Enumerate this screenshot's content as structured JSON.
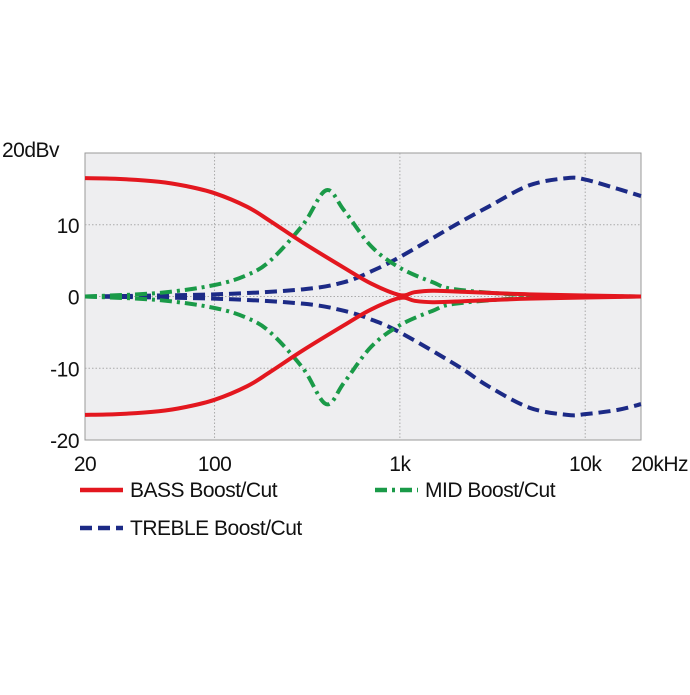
{
  "chart_data": {
    "type": "line",
    "title": "",
    "xlabel": "",
    "ylabel": "",
    "x_scale": "log",
    "xlim": [
      20,
      20000
    ],
    "ylim": [
      -20,
      20
    ],
    "grid": true,
    "x_ticks": [
      {
        "value": 20,
        "label": "20"
      },
      {
        "value": 100,
        "label": "100"
      },
      {
        "value": 1000,
        "label": "1k"
      },
      {
        "value": 10000,
        "label": "10k"
      },
      {
        "value": 20000,
        "label": "20kHz"
      }
    ],
    "y_ticks": [
      {
        "value": 20,
        "label": "20dBv"
      },
      {
        "value": 10,
        "label": "10"
      },
      {
        "value": 0,
        "label": "0"
      },
      {
        "value": -10,
        "label": "-10"
      },
      {
        "value": -20,
        "label": "-20"
      }
    ],
    "legend_placement": "bottom",
    "series": [
      {
        "name": "BASS Boost/Cut",
        "color": "#e3171f",
        "style": "solid",
        "curves": [
          [
            [
              20,
              16.5
            ],
            [
              30,
              16.4
            ],
            [
              50,
              16
            ],
            [
              70,
              15.4
            ],
            [
              100,
              14.4
            ],
            [
              150,
              12.5
            ],
            [
              200,
              10.5
            ],
            [
              300,
              7.5
            ],
            [
              500,
              4
            ],
            [
              700,
              1.8
            ],
            [
              1000,
              0.2
            ],
            [
              1200,
              0.6
            ],
            [
              1500,
              0.8
            ],
            [
              2000,
              0.7
            ],
            [
              5000,
              0.3
            ],
            [
              20000,
              0
            ]
          ],
          [
            [
              20,
              -16.5
            ],
            [
              30,
              -16.4
            ],
            [
              50,
              -16
            ],
            [
              70,
              -15.4
            ],
            [
              100,
              -14.4
            ],
            [
              150,
              -12.5
            ],
            [
              200,
              -10.5
            ],
            [
              300,
              -7.5
            ],
            [
              500,
              -4
            ],
            [
              700,
              -1.8
            ],
            [
              1000,
              -0.2
            ],
            [
              1200,
              -0.6
            ],
            [
              1500,
              -0.8
            ],
            [
              2000,
              -0.7
            ],
            [
              5000,
              -0.3
            ],
            [
              20000,
              0
            ]
          ]
        ]
      },
      {
        "name": "MID Boost/Cut",
        "color": "#1a9a48",
        "style": "dashdot",
        "curves": [
          [
            [
              20,
              0
            ],
            [
              50,
              0.5
            ],
            [
              100,
              1.6
            ],
            [
              150,
              3
            ],
            [
              200,
              5
            ],
            [
              300,
              10
            ],
            [
              400,
              14.8
            ],
            [
              500,
              12
            ],
            [
              700,
              7
            ],
            [
              1000,
              4
            ],
            [
              1500,
              2
            ],
            [
              2000,
              1
            ],
            [
              5000,
              0.2
            ],
            [
              20000,
              0
            ]
          ],
          [
            [
              20,
              0
            ],
            [
              50,
              -0.5
            ],
            [
              100,
              -1.6
            ],
            [
              150,
              -3
            ],
            [
              200,
              -5
            ],
            [
              300,
              -10
            ],
            [
              400,
              -15
            ],
            [
              500,
              -12
            ],
            [
              700,
              -7
            ],
            [
              1000,
              -4
            ],
            [
              1500,
              -2
            ],
            [
              2000,
              -1
            ],
            [
              5000,
              -0.2
            ],
            [
              20000,
              0
            ]
          ]
        ]
      },
      {
        "name": "TREBLE Boost/Cut",
        "color": "#1c2a86",
        "style": "dashed",
        "curves": [
          [
            [
              20,
              0
            ],
            [
              100,
              0.3
            ],
            [
              300,
              1
            ],
            [
              500,
              2
            ],
            [
              700,
              3.5
            ],
            [
              1000,
              5.5
            ],
            [
              2000,
              10
            ],
            [
              3000,
              12.5
            ],
            [
              5000,
              15.5
            ],
            [
              8000,
              16.5
            ],
            [
              10000,
              16.3
            ],
            [
              15000,
              15
            ],
            [
              20000,
              14
            ]
          ],
          [
            [
              20,
              0
            ],
            [
              100,
              -0.3
            ],
            [
              300,
              -1
            ],
            [
              500,
              -2
            ],
            [
              700,
              -3.2
            ],
            [
              1000,
              -5
            ],
            [
              2000,
              -9.5
            ],
            [
              3000,
              -12.5
            ],
            [
              5000,
              -15.5
            ],
            [
              8000,
              -16.5
            ],
            [
              10000,
              -16.4
            ],
            [
              15000,
              -15.8
            ],
            [
              20000,
              -15
            ]
          ]
        ]
      }
    ]
  }
}
